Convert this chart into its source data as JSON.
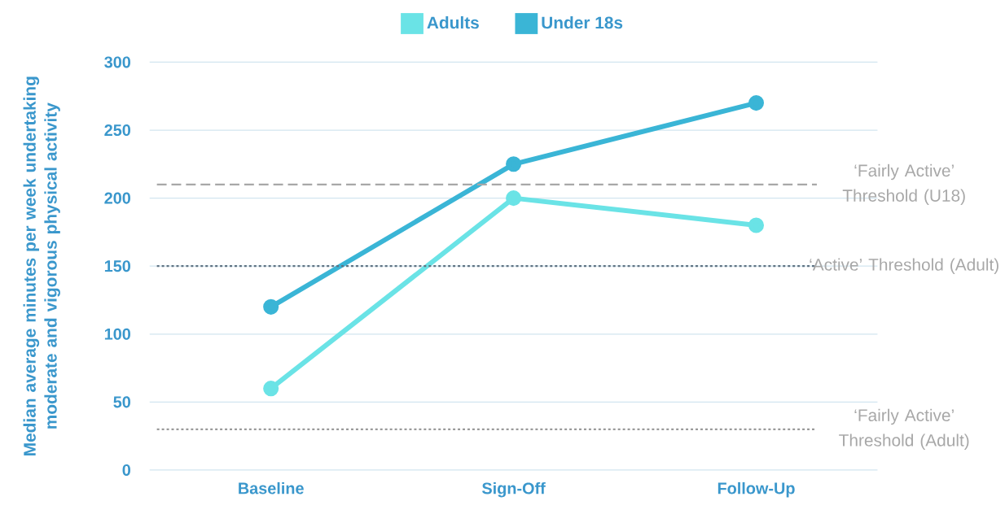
{
  "chart_data": {
    "type": "line",
    "ylabel": "Median average minutes per week undertaking moderate and vigorous physical activity",
    "categories": [
      "Baseline",
      "Sign-Off",
      "Follow-Up"
    ],
    "series": [
      {
        "name": "Adults",
        "color": "#6ae3e6",
        "values": [
          60,
          200,
          180
        ]
      },
      {
        "name": "Under 18s",
        "color": "#3ab5d6",
        "values": [
          120,
          225,
          270
        ]
      }
    ],
    "ylim": [
      0,
      300
    ],
    "yticks": [
      0,
      50,
      100,
      150,
      200,
      250,
      300
    ],
    "grid": "y",
    "legend": "top",
    "marker": "circle",
    "line_style": "solid",
    "ref_lines": [
      {
        "axis": "y",
        "value": 210,
        "label": "‘Fairly Active’ Threshold (U18)",
        "color": "#a8a8a8",
        "line_style": "dashed"
      },
      {
        "axis": "y",
        "value": 150,
        "label": "‘Active’ Threshold (Adult)",
        "color": "#5f7383",
        "line_style": "dotted"
      },
      {
        "axis": "y",
        "value": 30,
        "label": "‘Fairly Active’ Threshold (Adult)",
        "color": "#9a9a9a",
        "line_style": "dotted"
      }
    ]
  }
}
